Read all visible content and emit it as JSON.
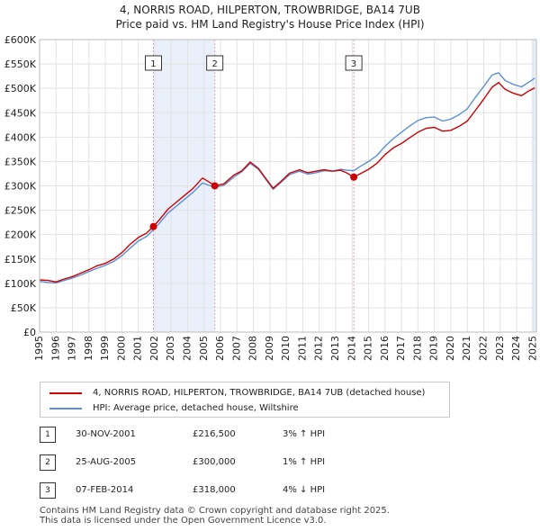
{
  "title_line1": "4, NORRIS ROAD, HILPERTON, TROWBRIDGE, BA14 7UB",
  "title_line2": "Price paid vs. HM Land Registry's House Price Index (HPI)",
  "colors": {
    "property": "#cc0000",
    "hpi": "#5b8fd6",
    "grid": "#e3e3e3",
    "marker_line": "#d9a0b4",
    "shade": "#eaf0fa"
  },
  "chart_data": {
    "type": "line",
    "title": "Price paid vs. HM Land Registry's House Price Index (HPI)",
    "xlim": [
      1995,
      2025.2
    ],
    "ylim": [
      0,
      600000
    ],
    "x_ticks": [
      1995,
      1996,
      1997,
      1998,
      1999,
      2000,
      2001,
      2002,
      2003,
      2004,
      2005,
      2006,
      2007,
      2008,
      2009,
      2010,
      2011,
      2012,
      2013,
      2014,
      2015,
      2016,
      2017,
      2018,
      2019,
      2020,
      2021,
      2022,
      2023,
      2024,
      2025
    ],
    "y_ticks": [
      0,
      50000,
      100000,
      150000,
      200000,
      250000,
      300000,
      350000,
      400000,
      450000,
      500000,
      550000,
      600000
    ],
    "y_tick_labels": [
      "£0",
      "£50K",
      "£100K",
      "£150K",
      "£200K",
      "£250K",
      "£300K",
      "£350K",
      "£400K",
      "£450K",
      "£500K",
      "£550K",
      "£600K"
    ],
    "series": [
      {
        "name": "4, NORRIS ROAD, HILPERTON, TROWBRIDGE, BA14 7UB (detached house)",
        "color": "#cc0000",
        "points": [
          [
            1995,
            107000
          ],
          [
            1995.5,
            106000
          ],
          [
            1996,
            103000
          ],
          [
            1996.5,
            109000
          ],
          [
            1997,
            114000
          ],
          [
            1997.5,
            121000
          ],
          [
            1998,
            128000
          ],
          [
            1998.5,
            136000
          ],
          [
            1999,
            141000
          ],
          [
            1999.5,
            150000
          ],
          [
            2000,
            163000
          ],
          [
            2000.5,
            180000
          ],
          [
            2001,
            194000
          ],
          [
            2001.5,
            203000
          ],
          [
            2001.92,
            216500
          ],
          [
            2002.3,
            231000
          ],
          [
            2002.8,
            252000
          ],
          [
            2003.3,
            266000
          ],
          [
            2003.8,
            280000
          ],
          [
            2004.3,
            294000
          ],
          [
            2004.9,
            316000
          ],
          [
            2005.3,
            308000
          ],
          [
            2005.65,
            300000
          ],
          [
            2006.2,
            304000
          ],
          [
            2006.8,
            322000
          ],
          [
            2007.3,
            331000
          ],
          [
            2007.8,
            349000
          ],
          [
            2008.3,
            336000
          ],
          [
            2008.8,
            313000
          ],
          [
            2009.2,
            295000
          ],
          [
            2009.6,
            307000
          ],
          [
            2010.2,
            326000
          ],
          [
            2010.8,
            333000
          ],
          [
            2011.3,
            327000
          ],
          [
            2011.8,
            330000
          ],
          [
            2012.3,
            333000
          ],
          [
            2012.8,
            330000
          ],
          [
            2013.3,
            332000
          ],
          [
            2013.7,
            326000
          ],
          [
            2014.1,
            318000
          ],
          [
            2014.5,
            325000
          ],
          [
            2015,
            334000
          ],
          [
            2015.5,
            346000
          ],
          [
            2016,
            364000
          ],
          [
            2016.5,
            378000
          ],
          [
            2017,
            387000
          ],
          [
            2017.5,
            399000
          ],
          [
            2018,
            410000
          ],
          [
            2018.5,
            418000
          ],
          [
            2019,
            420000
          ],
          [
            2019.5,
            412000
          ],
          [
            2020,
            414000
          ],
          [
            2020.5,
            422000
          ],
          [
            2021,
            433000
          ],
          [
            2021.5,
            455000
          ],
          [
            2022,
            478000
          ],
          [
            2022.5,
            502000
          ],
          [
            2022.9,
            512000
          ],
          [
            2023.3,
            498000
          ],
          [
            2023.8,
            490000
          ],
          [
            2024.3,
            485000
          ],
          [
            2024.7,
            494000
          ],
          [
            2025.1,
            501000
          ]
        ]
      },
      {
        "name": "HPI: Average price, detached house, Wiltshire",
        "color": "#5b8fd6",
        "points": [
          [
            1995,
            104000
          ],
          [
            1995.5,
            102000
          ],
          [
            1996,
            101000
          ],
          [
            1996.5,
            106000
          ],
          [
            1997,
            111000
          ],
          [
            1997.5,
            117000
          ],
          [
            1998,
            124000
          ],
          [
            1998.5,
            131000
          ],
          [
            1999,
            137000
          ],
          [
            1999.5,
            145000
          ],
          [
            2000,
            157000
          ],
          [
            2000.5,
            172000
          ],
          [
            2001,
            187000
          ],
          [
            2001.5,
            196000
          ],
          [
            2001.92,
            210000
          ],
          [
            2002.3,
            224000
          ],
          [
            2002.8,
            244000
          ],
          [
            2003.3,
            258000
          ],
          [
            2003.8,
            272000
          ],
          [
            2004.3,
            286000
          ],
          [
            2004.9,
            306000
          ],
          [
            2005.3,
            301000
          ],
          [
            2005.65,
            297000
          ],
          [
            2006.2,
            301000
          ],
          [
            2006.8,
            318000
          ],
          [
            2007.3,
            329000
          ],
          [
            2007.8,
            346000
          ],
          [
            2008.3,
            334000
          ],
          [
            2008.8,
            311000
          ],
          [
            2009.2,
            293000
          ],
          [
            2009.6,
            305000
          ],
          [
            2010.2,
            323000
          ],
          [
            2010.8,
            330000
          ],
          [
            2011.3,
            324000
          ],
          [
            2011.8,
            327000
          ],
          [
            2012.3,
            331000
          ],
          [
            2012.8,
            330000
          ],
          [
            2013.3,
            334000
          ],
          [
            2013.7,
            332000
          ],
          [
            2014.1,
            331000
          ],
          [
            2014.5,
            340000
          ],
          [
            2015,
            350000
          ],
          [
            2015.5,
            362000
          ],
          [
            2016,
            381000
          ],
          [
            2016.5,
            397000
          ],
          [
            2017,
            410000
          ],
          [
            2017.5,
            423000
          ],
          [
            2018,
            434000
          ],
          [
            2018.5,
            440000
          ],
          [
            2019,
            441000
          ],
          [
            2019.5,
            433000
          ],
          [
            2020,
            437000
          ],
          [
            2020.5,
            446000
          ],
          [
            2021,
            458000
          ],
          [
            2021.5,
            482000
          ],
          [
            2022,
            504000
          ],
          [
            2022.5,
            527000
          ],
          [
            2022.9,
            532000
          ],
          [
            2023.3,
            516000
          ],
          [
            2023.8,
            508000
          ],
          [
            2024.3,
            503000
          ],
          [
            2024.7,
            512000
          ],
          [
            2025.1,
            521000
          ]
        ]
      }
    ],
    "markers": [
      {
        "label": "1",
        "x": 2001.92,
        "y": 216500
      },
      {
        "label": "2",
        "x": 2005.65,
        "y": 300000
      },
      {
        "label": "3",
        "x": 2014.1,
        "y": 318000
      }
    ],
    "shaded_x_ranges": [
      [
        2001.92,
        2005.65
      ],
      [
        2024.9,
        2025.2
      ]
    ]
  },
  "legend": {
    "property_label": "4, NORRIS ROAD, HILPERTON, TROWBRIDGE, BA14 7UB (detached house)",
    "hpi_label": "HPI: Average price, detached house, Wiltshire"
  },
  "transactions": [
    {
      "num": "1",
      "date": "30-NOV-2001",
      "price": "£216,500",
      "hpi": "3% ↑ HPI"
    },
    {
      "num": "2",
      "date": "25-AUG-2005",
      "price": "£300,000",
      "hpi": "1% ↑ HPI"
    },
    {
      "num": "3",
      "date": "07-FEB-2014",
      "price": "£318,000",
      "hpi": "4% ↓ HPI"
    }
  ],
  "footer_line1": "Contains HM Land Registry data © Crown copyright and database right 2025.",
  "footer_line2": "This data is licensed under the Open Government Licence v3.0."
}
